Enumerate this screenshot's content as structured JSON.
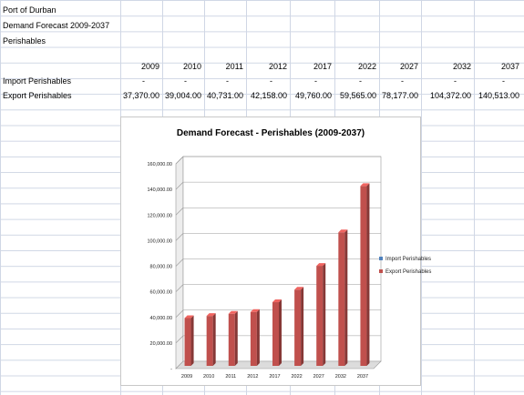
{
  "sheet": {
    "header_lines": [
      "Port of Durban",
      "Demand Forecast 2009-2037",
      "Perishables"
    ],
    "years": [
      "2009",
      "2010",
      "2011",
      "2012",
      "2017",
      "2022",
      "2027",
      "2032",
      "2037"
    ],
    "rows": [
      {
        "label": "Import Perishables",
        "values": [
          "-",
          "-",
          "-",
          "-",
          "-",
          "-",
          "-",
          "-",
          "-"
        ]
      },
      {
        "label": "Export Perishables",
        "values": [
          "37,370.00",
          "39,004.00",
          "40,731.00",
          "42,158.00",
          "49,760.00",
          "59,565.00",
          "78,177.00",
          "104,372.00",
          "140,513.00"
        ]
      }
    ]
  },
  "chart_data": {
    "type": "bar",
    "title": "Demand Forecast - Perishables (2009-2037)",
    "categories": [
      "2009",
      "2010",
      "2011",
      "2012",
      "2017",
      "2022",
      "2027",
      "2032",
      "2037"
    ],
    "series": [
      {
        "name": "Import Perishables",
        "values": [
          0,
          0,
          0,
          0,
          0,
          0,
          0,
          0,
          0
        ],
        "color": "#4f81bd"
      },
      {
        "name": "Export Perishables",
        "values": [
          37370,
          39004,
          40731,
          42158,
          49760,
          59565,
          78177,
          104372,
          140513
        ],
        "color": "#c0504d"
      }
    ],
    "ylim": [
      0,
      160000
    ],
    "y_ticks": [
      "-",
      "20,000.00",
      "40,000.00",
      "60,000.00",
      "80,000.00",
      "100,000.00",
      "120,000.00",
      "140,000.00",
      "160,000.00"
    ],
    "grid": true,
    "legend": "right"
  }
}
